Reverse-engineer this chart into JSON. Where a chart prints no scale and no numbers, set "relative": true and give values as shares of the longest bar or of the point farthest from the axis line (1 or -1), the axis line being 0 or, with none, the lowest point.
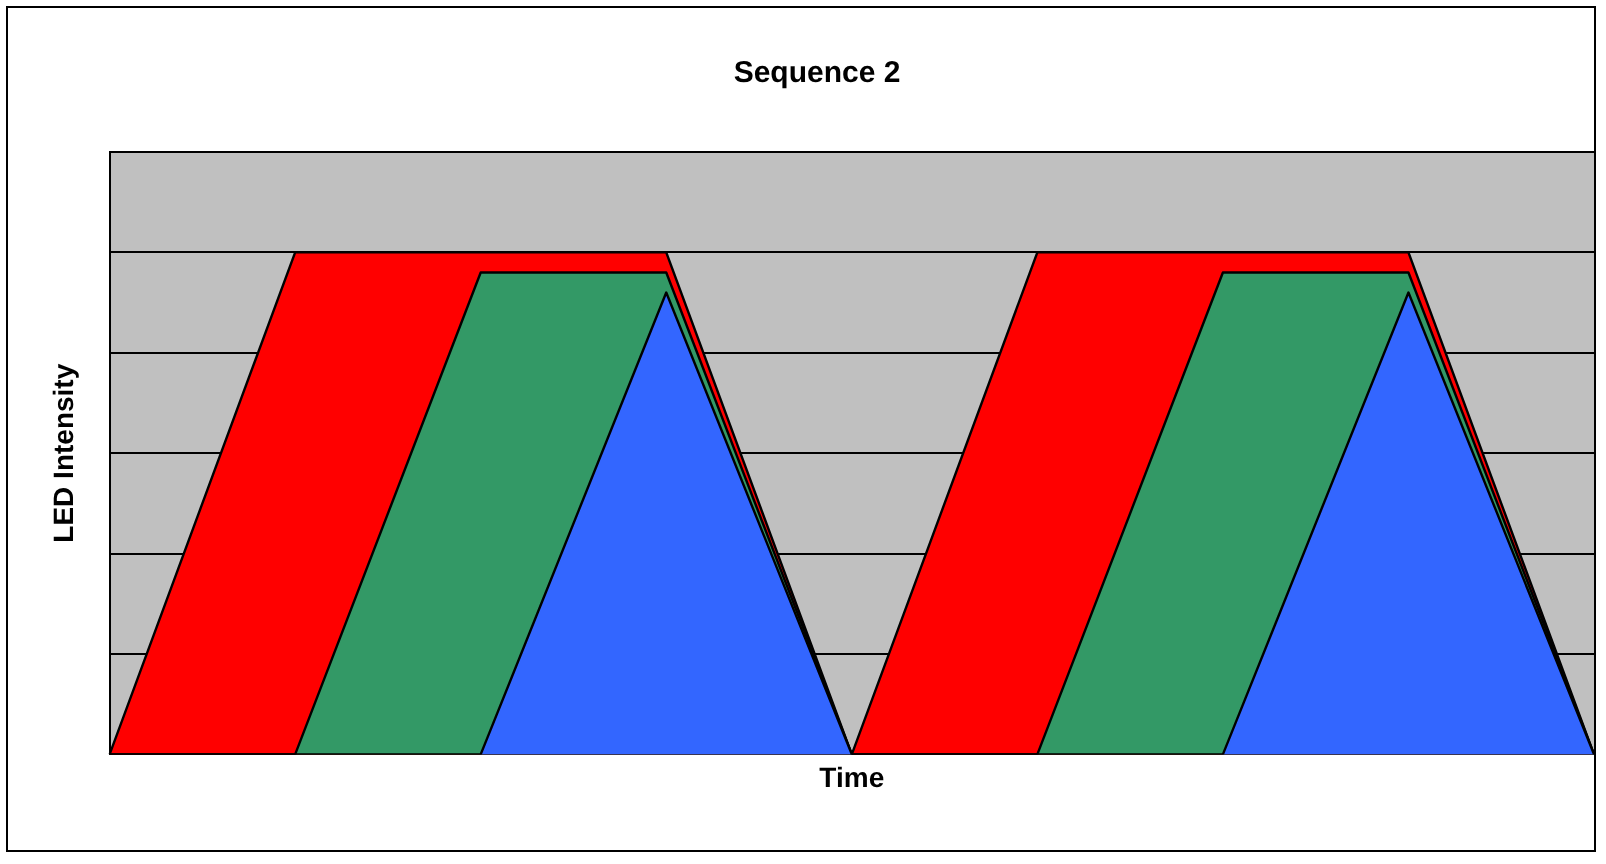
{
  "chart_data": {
    "type": "area",
    "title": "Sequence 2",
    "xlabel": "Time",
    "ylabel": "LED Intensity",
    "relative": true,
    "grid": "y",
    "legend": false,
    "categories": [
      null,
      null,
      null,
      null,
      null,
      null,
      null,
      null,
      null
    ],
    "series": [
      {
        "color": "#ff0000",
        "values": [
          0,
          1,
          1,
          1,
          0,
          1,
          1,
          1,
          0
        ]
      },
      {
        "color": "#339966",
        "values": [
          0,
          0,
          0.96,
          0.96,
          0,
          0,
          0.96,
          0.96,
          0
        ]
      },
      {
        "color": "#3366ff",
        "values": [
          0,
          0,
          0,
          0.92,
          0,
          0,
          0,
          0.92,
          0
        ]
      }
    ]
  }
}
